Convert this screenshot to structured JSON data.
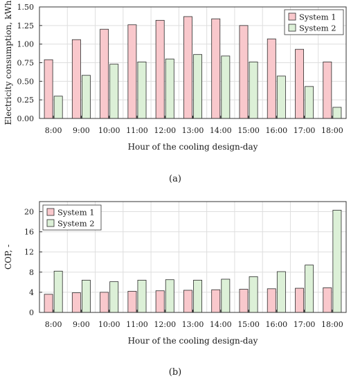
{
  "chart_data": [
    {
      "type": "bar",
      "panel_label": "(a)",
      "categories": [
        "8:00",
        "9:00",
        "10:00",
        "11:00",
        "12:00",
        "13:00",
        "14:00",
        "15:00",
        "16:00",
        "17:00",
        "18:00"
      ],
      "series": [
        {
          "name": "System 1",
          "values": [
            0.79,
            1.06,
            1.2,
            1.26,
            1.32,
            1.37,
            1.34,
            1.25,
            1.07,
            0.93,
            0.76
          ],
          "color": "#f9c8cc"
        },
        {
          "name": "System 2",
          "values": [
            0.3,
            0.58,
            0.73,
            0.76,
            0.8,
            0.86,
            0.84,
            0.76,
            0.57,
            0.43,
            0.15
          ],
          "color": "#dcf0d7"
        }
      ],
      "xlabel": "Hour of the cooling design-day",
      "ylabel": "Electricity consumption, kWh",
      "ylim": [
        0,
        1.5
      ],
      "yticks": [
        0.0,
        0.25,
        0.5,
        0.75,
        1.0,
        1.25,
        1.5
      ],
      "ytick_labels": [
        "0.00",
        "0.25",
        "0.50",
        "0.75",
        "1.00",
        "1.25",
        "1.50"
      ],
      "grid": true,
      "legend_position": "top-right"
    },
    {
      "type": "bar",
      "panel_label": "(b)",
      "categories": [
        "8:00",
        "9:00",
        "10:00",
        "11:00",
        "12:00",
        "13:00",
        "14:00",
        "15:00",
        "16:00",
        "17:00",
        "18:00"
      ],
      "series": [
        {
          "name": "System 1",
          "values": [
            3.6,
            3.9,
            4.0,
            4.2,
            4.3,
            4.4,
            4.5,
            4.6,
            4.7,
            4.8,
            4.9
          ],
          "color": "#f9c8cc"
        },
        {
          "name": "System 2",
          "values": [
            8.2,
            6.4,
            6.1,
            6.4,
            6.5,
            6.4,
            6.6,
            7.1,
            8.1,
            9.4,
            20.3
          ],
          "color": "#dcf0d7"
        }
      ],
      "xlabel": "Hour of the cooling design-day",
      "ylabel": "COP, -",
      "ylim": [
        0,
        22
      ],
      "yticks": [
        0,
        4,
        8,
        12,
        16,
        20
      ],
      "ytick_labels": [
        "0",
        "4",
        "8",
        "12",
        "16",
        "20"
      ],
      "grid": true,
      "legend_position": "top-left"
    }
  ]
}
